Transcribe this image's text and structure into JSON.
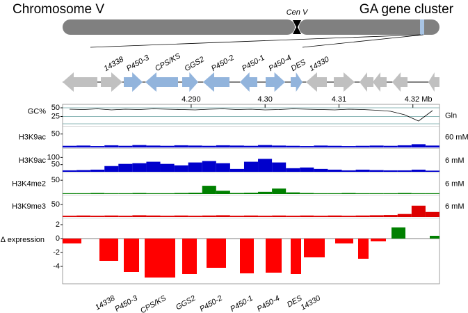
{
  "header": {
    "left": "Chromosome V",
    "center": "Cen V",
    "right": "GA gene cluster"
  },
  "chart_data": [
    {
      "type": "line",
      "ylabel": "GC%",
      "right_label": "Gln",
      "color": "#000000",
      "xlim": [
        4.2726,
        4.3236
      ],
      "xticks": [
        {
          "value": 4.29,
          "label": "4.290"
        },
        {
          "value": 4.3,
          "label": "4.30"
        },
        {
          "value": 4.31,
          "label": "4.31"
        },
        {
          "value": 4.32,
          "label": "4.32 Mb"
        }
      ],
      "ylim": [
        0,
        54
      ],
      "yticks": [
        50,
        25
      ],
      "values": [
        46,
        45,
        47,
        44,
        46,
        45,
        47,
        46,
        45,
        44,
        46,
        47,
        45,
        46,
        44,
        45,
        47,
        46,
        45,
        44,
        46,
        45,
        43,
        40,
        30,
        12,
        42
      ]
    },
    {
      "type": "area",
      "ylabel": "H3K9ac",
      "right_label": "60 mM",
      "color": "#0000cc",
      "ylim": [
        0,
        75
      ],
      "yticks": [
        50
      ],
      "values": [
        6,
        7,
        5,
        8,
        6,
        9,
        7,
        6,
        8,
        7,
        6,
        8,
        7,
        6,
        9,
        7,
        6,
        5,
        7,
        6,
        5,
        6,
        7,
        6,
        8,
        12,
        7
      ]
    },
    {
      "type": "area",
      "ylabel": "H3K9ac",
      "right_label": "6 mM",
      "color": "#0000cc",
      "ylim": [
        0,
        155
      ],
      "yticks": [
        100,
        50
      ],
      "values": [
        10,
        12,
        15,
        40,
        55,
        60,
        70,
        55,
        45,
        65,
        75,
        60,
        20,
        70,
        90,
        65,
        25,
        30,
        20,
        15,
        10,
        15,
        12,
        10,
        10,
        15,
        8
      ]
    },
    {
      "type": "area",
      "ylabel": "H3K4me2",
      "right_label": "6 mM",
      "color": "#008000",
      "ylim": [
        0,
        73
      ],
      "yticks": [
        50
      ],
      "values": [
        3,
        3,
        4,
        3,
        3,
        4,
        3,
        3,
        4,
        5,
        30,
        12,
        4,
        5,
        8,
        20,
        6,
        4,
        3,
        3,
        4,
        3,
        3,
        3,
        4,
        3,
        3
      ]
    },
    {
      "type": "area",
      "ylabel": "H3K9me3",
      "right_label": "6 mM",
      "color": "#dd0000",
      "ylim": [
        0,
        83
      ],
      "yticks": [
        50
      ],
      "values": [
        5,
        6,
        5,
        6,
        5,
        7,
        6,
        5,
        6,
        5,
        6,
        7,
        5,
        6,
        5,
        6,
        5,
        6,
        5,
        6,
        5,
        6,
        7,
        8,
        12,
        45,
        20
      ]
    },
    {
      "type": "bar",
      "ylabel": "∆ expression",
      "color_up": "#008000",
      "color_down": "#ff0000",
      "ylim": [
        -6.5,
        2.8
      ],
      "yticks": [
        2,
        0,
        -2,
        -4
      ],
      "categories": [
        null,
        "14338",
        "P450-3",
        "CPS/KS",
        "GGS2",
        "P450-2",
        "P450-1",
        "P450-4",
        "DES",
        "14330",
        null,
        null,
        null,
        null,
        null
      ],
      "values": [
        -0.7,
        -3.2,
        -4.8,
        -5.6,
        -5.1,
        -4.2,
        -5.0,
        -4.9,
        -5.1,
        -2.7,
        -0.7,
        -2.9,
        -0.4,
        1.6,
        0.4
      ]
    }
  ]
}
